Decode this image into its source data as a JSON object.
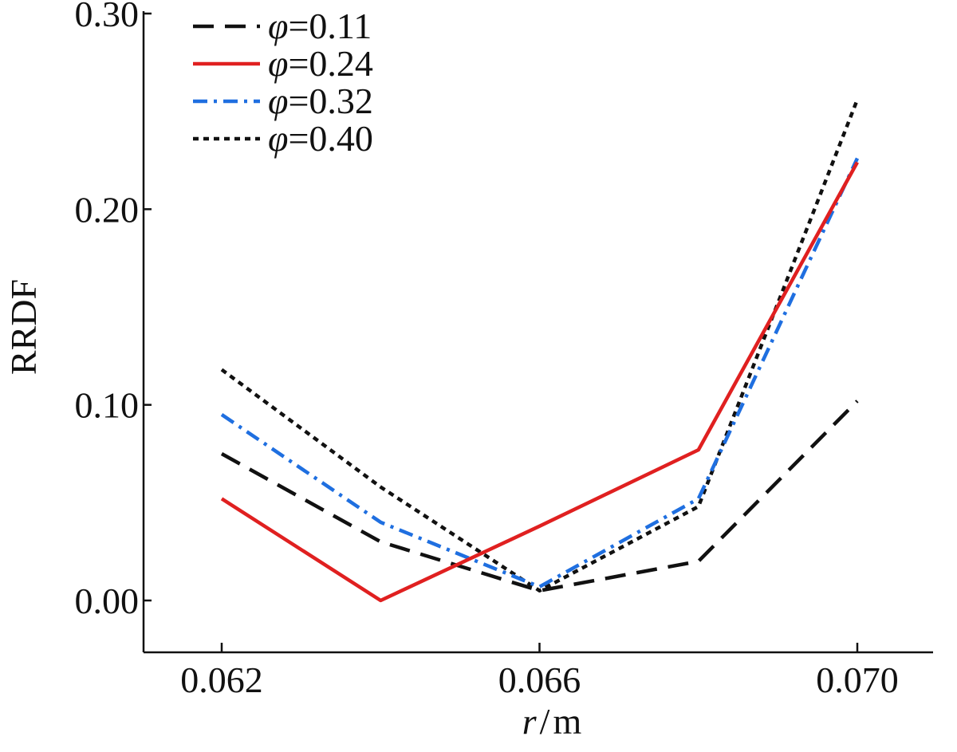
{
  "chart_data": {
    "type": "line",
    "title": "",
    "xlabel": {
      "var": "r",
      "unit": "m"
    },
    "ylabel": "RRDF",
    "x": [
      0.062,
      0.064,
      0.066,
      0.068,
      0.07
    ],
    "xticks": [
      "0.062",
      "0.066",
      "0.070"
    ],
    "xtick_values": [
      0.062,
      0.066,
      0.07
    ],
    "yticks": [
      "0.00",
      "0.10",
      "0.20",
      "0.30"
    ],
    "ytick_values": [
      0.0,
      0.1,
      0.2,
      0.3
    ],
    "xlim": [
      0.061,
      0.0704
    ],
    "ylim": [
      -0.025,
      0.3
    ],
    "grid": false,
    "legend_position": "top-left",
    "series": [
      {
        "name": "φ=0.11",
        "symbol": "φ",
        "value": "=0.11",
        "values": [
          0.075,
          0.03,
          0.005,
          0.02,
          0.102
        ],
        "color": "#111111",
        "dash": "26,14"
      },
      {
        "name": "φ=0.24",
        "symbol": "φ",
        "value": "=0.24",
        "values": [
          0.052,
          0.0,
          0.038,
          0.077,
          0.224
        ],
        "color": "#e02020",
        "dash": ""
      },
      {
        "name": "φ=0.32",
        "symbol": "φ",
        "value": "=0.32",
        "values": [
          0.095,
          0.04,
          0.007,
          0.052,
          0.226
        ],
        "color": "#1f6fe0",
        "dash": "18,8,4,8"
      },
      {
        "name": "φ=0.40",
        "symbol": "φ",
        "value": "=0.40",
        "values": [
          0.118,
          0.058,
          0.005,
          0.048,
          0.256
        ],
        "color": "#111111",
        "dash": "7,6"
      }
    ]
  }
}
